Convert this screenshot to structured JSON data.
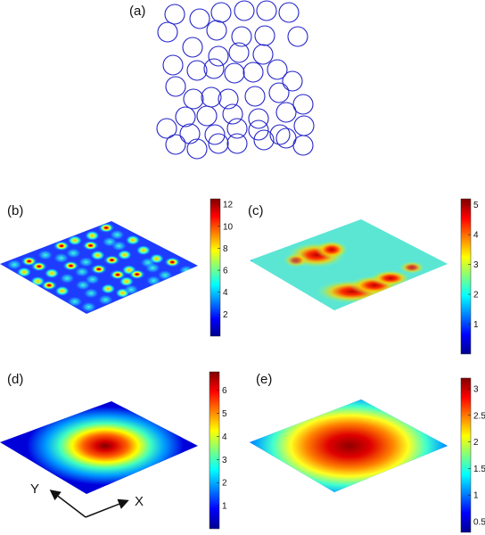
{
  "panels": {
    "a": {
      "label": "(a)"
    },
    "b": {
      "label": "(b)"
    },
    "c": {
      "label": "(c)"
    },
    "d": {
      "label": "(d)"
    },
    "e": {
      "label": "(e)"
    }
  },
  "axes_indicator": {
    "x_label": "X",
    "y_label": "Y"
  },
  "colors": {
    "circle_stroke": "#2424c8",
    "colormap": "jet"
  },
  "chart_data": [
    {
      "panel": "b",
      "type": "heatmap",
      "surface": "many localized hotspots",
      "colorbar_range": [
        0,
        12.5
      ],
      "colorbar_ticks": [
        "2",
        "4",
        "6",
        "8",
        "10",
        "12"
      ],
      "colorbar_tick_values": [
        2,
        4,
        6,
        8,
        10,
        12
      ]
    },
    {
      "panel": "c",
      "type": "heatmap",
      "surface": "two elongated bands of high values",
      "colorbar_range": [
        0,
        5.2
      ],
      "colorbar_ticks": [
        "1",
        "2",
        "3",
        "4",
        "5"
      ],
      "colorbar_tick_values": [
        1,
        2,
        3,
        4,
        5
      ]
    },
    {
      "panel": "d",
      "type": "heatmap",
      "surface": "single central peak",
      "colorbar_range": [
        0,
        6.8
      ],
      "colorbar_ticks": [
        "1",
        "2",
        "3",
        "4",
        "5",
        "6"
      ],
      "colorbar_tick_values": [
        1,
        2,
        3,
        4,
        5,
        6
      ]
    },
    {
      "panel": "e",
      "type": "heatmap",
      "surface": "single broad central peak",
      "colorbar_range": [
        0.3,
        3.2
      ],
      "colorbar_ticks": [
        "0.5",
        "1",
        "1.5",
        "2",
        "2.5",
        "3"
      ],
      "colorbar_tick_values": [
        0.5,
        1,
        1.5,
        2,
        2.5,
        3
      ]
    }
  ]
}
